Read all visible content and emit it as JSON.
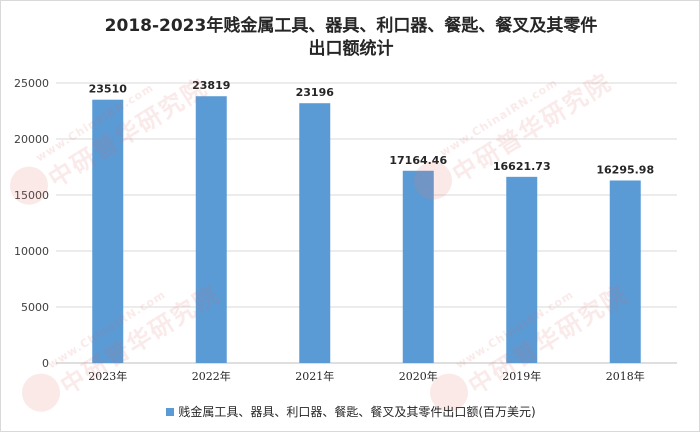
{
  "chart_data": {
    "type": "bar",
    "title_lines": [
      "2018-2023年贱金属工具、器具、利口器、餐匙、餐叉及其零件",
      "出口额统计"
    ],
    "categories": [
      "2023年",
      "2022年",
      "2021年",
      "2020年",
      "2019年",
      "2018年"
    ],
    "series": [
      {
        "name": "贱金属工具、器具、利口器、餐匙、餐叉及其零件出口额(百万美元)",
        "values": [
          23510,
          23819,
          23196,
          17164.46,
          16621.73,
          16295.98
        ],
        "labels": [
          "23510",
          "23819",
          "23196",
          "17164.46",
          "16621.73",
          "16295.98"
        ],
        "color": "#5b9bd5"
      }
    ],
    "ylim": [
      0,
      25000
    ],
    "yticks": [
      "0",
      "5000",
      "10000",
      "15000",
      "20000",
      "25000"
    ],
    "grid": true,
    "legend_position": "bottom"
  },
  "watermark": {
    "url": "www.ChinaIRN.com",
    "name": "中研普华研究院",
    "logo": "CIRN"
  }
}
